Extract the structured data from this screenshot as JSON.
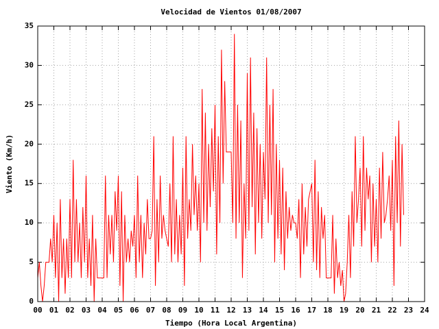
{
  "chart_data": {
    "type": "line",
    "title": "Velocidad de Vientos 01/08/2007",
    "xlabel": "Tiempo (Hora Local Argentina)",
    "ylabel": "Viento (Km/h)",
    "xlim": [
      0,
      24
    ],
    "ylim": [
      0,
      35
    ],
    "grid": true,
    "xticks": [
      {
        "value": 0,
        "label": "00"
      },
      {
        "value": 1,
        "label": "01"
      },
      {
        "value": 2,
        "label": "02"
      },
      {
        "value": 3,
        "label": "03"
      },
      {
        "value": 4,
        "label": "04"
      },
      {
        "value": 5,
        "label": "05"
      },
      {
        "value": 6,
        "label": "06"
      },
      {
        "value": 7,
        "label": "07"
      },
      {
        "value": 8,
        "label": "08"
      },
      {
        "value": 9,
        "label": "09"
      },
      10,
      11,
      12,
      13,
      14,
      15,
      16,
      17,
      18,
      19,
      20,
      21,
      22,
      23,
      24
    ],
    "yticks": [
      0,
      5,
      10,
      15,
      20,
      25,
      30,
      35
    ],
    "x": [
      0,
      0.1,
      0.2,
      0.3,
      0.4,
      0.5,
      0.6,
      0.7,
      0.8,
      0.9,
      1,
      1.1,
      1.2,
      1.3,
      1.4,
      1.5,
      1.6,
      1.7,
      1.8,
      1.9,
      2,
      2.1,
      2.2,
      2.3,
      2.4,
      2.5,
      2.6,
      2.7,
      2.8,
      2.9,
      3,
      3.1,
      3.2,
      3.3,
      3.4,
      3.5,
      3.6,
      3.7,
      3.8,
      3.9,
      4,
      4.1,
      4.2,
      4.3,
      4.4,
      4.5,
      4.6,
      4.7,
      4.8,
      4.9,
      5,
      5.1,
      5.2,
      5.3,
      5.4,
      5.5,
      5.6,
      5.7,
      5.8,
      5.9,
      6,
      6.1,
      6.2,
      6.3,
      6.4,
      6.5,
      6.6,
      6.7,
      6.8,
      6.9,
      7,
      7.1,
      7.2,
      7.3,
      7.4,
      7.5,
      7.6,
      7.7,
      7.8,
      7.9,
      8,
      8.1,
      8.2,
      8.3,
      8.4,
      8.5,
      8.6,
      8.7,
      8.8,
      8.9,
      9,
      9.1,
      9.2,
      9.3,
      9.4,
      9.5,
      9.6,
      9.7,
      9.8,
      9.9,
      10,
      10.1,
      10.2,
      10.3,
      10.4,
      10.5,
      10.6,
      10.7,
      10.8,
      10.9,
      11,
      11.1,
      11.2,
      11.3,
      11.4,
      11.5,
      11.6,
      11.7,
      11.8,
      11.9,
      12,
      12.1,
      12.2,
      12.3,
      12.4,
      12.5,
      12.6,
      12.7,
      12.8,
      12.9,
      13,
      13.1,
      13.2,
      13.3,
      13.4,
      13.5,
      13.6,
      13.7,
      13.8,
      13.9,
      14,
      14.1,
      14.2,
      14.3,
      14.4,
      14.5,
      14.6,
      14.7,
      14.8,
      14.9,
      15,
      15.1,
      15.2,
      15.3,
      15.4,
      15.5,
      15.6,
      15.7,
      15.8,
      15.9,
      16,
      16.1,
      16.2,
      16.3,
      16.4,
      16.5,
      16.6,
      16.7,
      16.8,
      16.9,
      17,
      17.1,
      17.2,
      17.3,
      17.4,
      17.5,
      17.6,
      17.7,
      17.8,
      17.9,
      18,
      18.1,
      18.2,
      18.3,
      18.4,
      18.5,
      18.6,
      18.7,
      18.8,
      18.9,
      19,
      19.1,
      19.2,
      19.3,
      19.4,
      19.5,
      19.6,
      19.7,
      19.8,
      19.9,
      20,
      20.1,
      20.2,
      20.3,
      20.4,
      20.5,
      20.6,
      20.7,
      20.8,
      20.9,
      21,
      21.1,
      21.2,
      21.3,
      21.4,
      21.5,
      21.6,
      21.7,
      21.8,
      21.9,
      22,
      22.1,
      22.2,
      22.3,
      22.4,
      22.5,
      22.6,
      22.7
    ],
    "series": [
      {
        "color": "#ff0000",
        "values": [
          3,
          5,
          2,
          0,
          2,
          5,
          5,
          5,
          8,
          5,
          11,
          3,
          10,
          0,
          13,
          3,
          8,
          1,
          8,
          3,
          13,
          3,
          18,
          5,
          13,
          5,
          10,
          3,
          12,
          5,
          16,
          3,
          8,
          2,
          11,
          0,
          8,
          3,
          3,
          3,
          3,
          3,
          16,
          3,
          11,
          6,
          11,
          5,
          14,
          9,
          16,
          2,
          14,
          0,
          11,
          5,
          8,
          5,
          9,
          7,
          11,
          3,
          16,
          5,
          11,
          3,
          10,
          6,
          13,
          8,
          8,
          9,
          21,
          2,
          13,
          5,
          16,
          8,
          11,
          9,
          8,
          7,
          15,
          5,
          21,
          6,
          13,
          5,
          11,
          6,
          17,
          2,
          21,
          8,
          13,
          9,
          20,
          11,
          16,
          9,
          15,
          5,
          27,
          10,
          24,
          9,
          20,
          12,
          22,
          14,
          25,
          6,
          21,
          10,
          32,
          15,
          28,
          19,
          19,
          19,
          19,
          10,
          34,
          8,
          25,
          10,
          23,
          3,
          15,
          8,
          29,
          9,
          31,
          12,
          24,
          6,
          22,
          10,
          20,
          8,
          19,
          13,
          31,
          10,
          25,
          11,
          27,
          5,
          20,
          8,
          18,
          6,
          17,
          4,
          14,
          8,
          12,
          9,
          11,
          10,
          10,
          8,
          13,
          3,
          15,
          6,
          12,
          7,
          13,
          14,
          15,
          5,
          18,
          4,
          14,
          3,
          12,
          8,
          11,
          3,
          3,
          3,
          3,
          11,
          1,
          8,
          3,
          5,
          2,
          4,
          0,
          1,
          5,
          11,
          3,
          14,
          7,
          21,
          10,
          13,
          17,
          7,
          21,
          9,
          17,
          13,
          16,
          5,
          15,
          7,
          13,
          5,
          17,
          8,
          19,
          10,
          11,
          13,
          16,
          9,
          18,
          2,
          21,
          10,
          23,
          7,
          20,
          11
        ]
      }
    ]
  }
}
